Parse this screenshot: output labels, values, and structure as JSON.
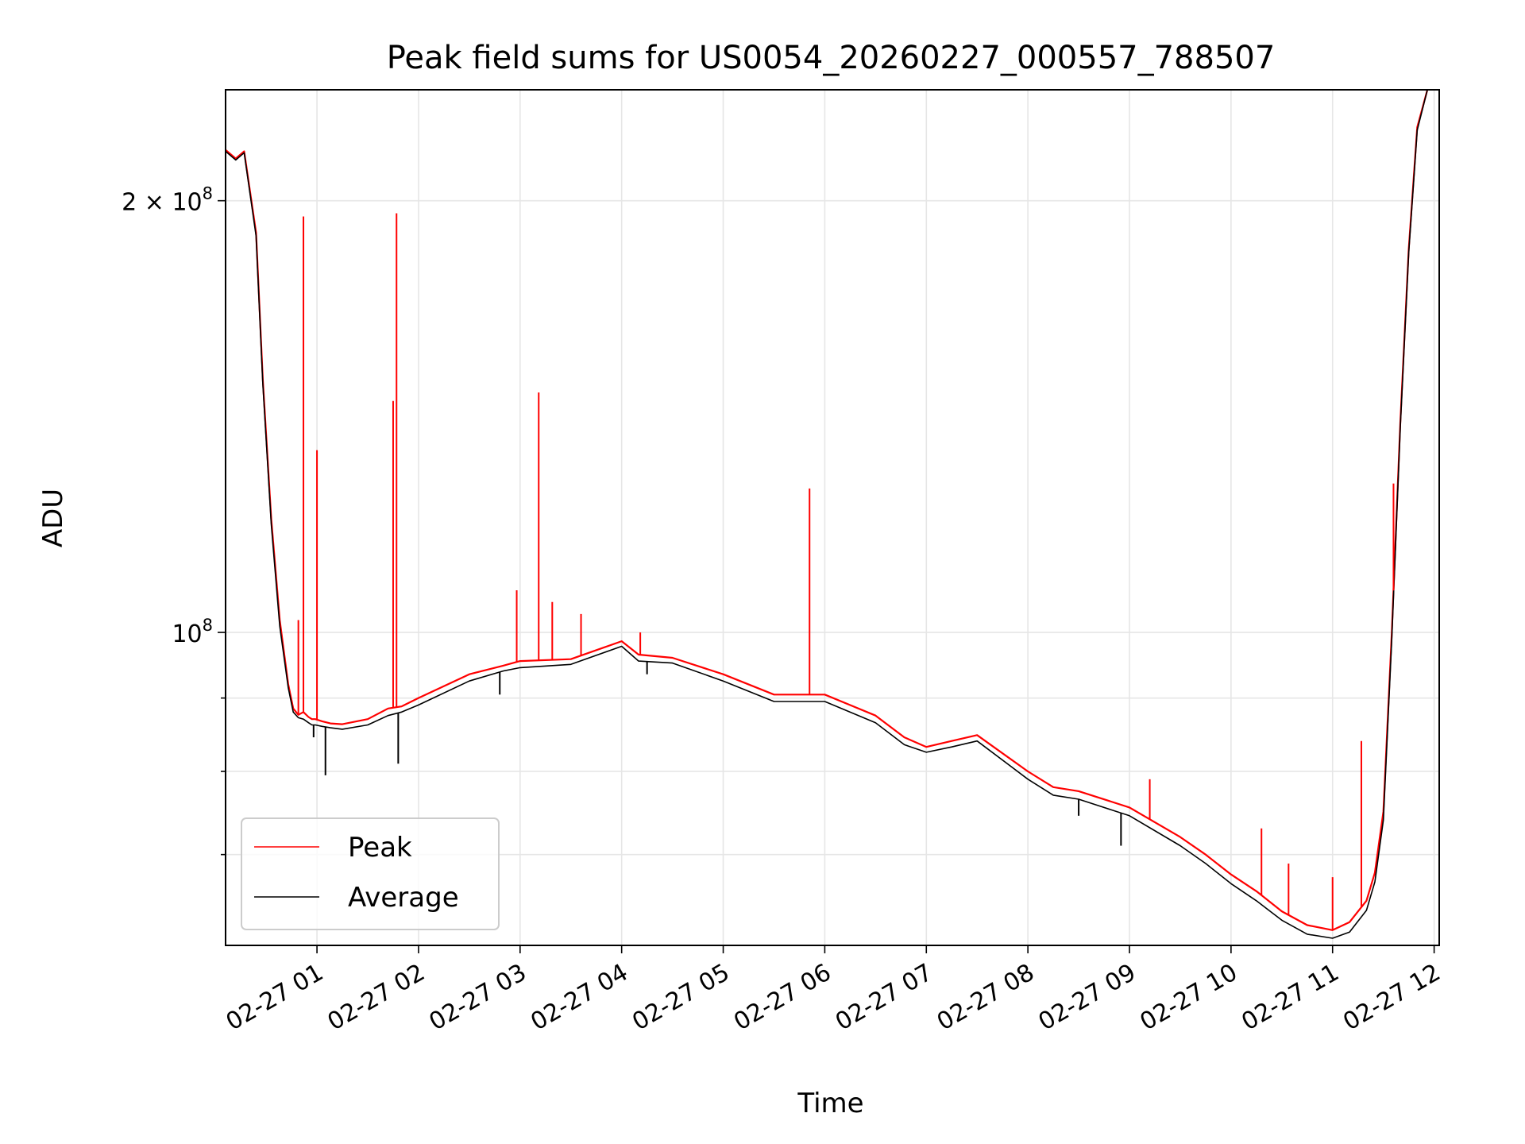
{
  "chart_data": {
    "type": "line",
    "title": "Peak field sums for US0054_20260227_000557_788507",
    "xlabel": "Time",
    "ylabel": "ADU",
    "y_scale": "log",
    "xlim": [
      "2026-02-27 00:06",
      "2026-02-27 12:03"
    ],
    "ylim": [
      60500000,
      239000000
    ],
    "grid": true,
    "legend": "lower-left",
    "x_ticks": [
      {
        "value": "2026-02-27 01:00",
        "label": "02-27 01"
      },
      {
        "value": "2026-02-27 02:00",
        "label": "02-27 02"
      },
      {
        "value": "2026-02-27 03:00",
        "label": "02-27 03"
      },
      {
        "value": "2026-02-27 04:00",
        "label": "02-27 04"
      },
      {
        "value": "2026-02-27 05:00",
        "label": "02-27 05"
      },
      {
        "value": "2026-02-27 06:00",
        "label": "02-27 06"
      },
      {
        "value": "2026-02-27 07:00",
        "label": "02-27 07"
      },
      {
        "value": "2026-02-27 08:00",
        "label": "02-27 08"
      },
      {
        "value": "2026-02-27 09:00",
        "label": "02-27 09"
      },
      {
        "value": "2026-02-27 10:00",
        "label": "02-27 10"
      },
      {
        "value": "2026-02-27 11:00",
        "label": "02-27 11"
      },
      {
        "value": "2026-02-27 12:00",
        "label": "02-27 12"
      }
    ],
    "y_major_ticks": [
      {
        "value": 100000000,
        "base": "10",
        "exp": "8"
      },
      {
        "value": 200000000,
        "coef": "2 × ",
        "base": "10",
        "exp": "8"
      }
    ],
    "y_minor_ticks": [
      70000000,
      80000000,
      90000000
    ],
    "colors": {
      "peak": "#ff0000",
      "average": "#000000"
    },
    "series": [
      {
        "name": "Peak",
        "color": "#ff0000",
        "x": [
          "2026-02-27 00:06",
          "2026-02-27 00:12",
          "2026-02-27 00:17",
          "2026-02-27 00:24",
          "2026-02-27 00:28",
          "2026-02-27 00:33",
          "2026-02-27 00:38",
          "2026-02-27 00:43",
          "2026-02-27 00:46",
          "2026-02-27 00:49",
          "2026-02-27 00:52",
          "2026-02-27 00:55",
          "2026-02-27 00:57",
          "2026-02-27 00:59",
          "2026-02-27 01:03",
          "2026-02-27 01:08",
          "2026-02-27 01:15",
          "2026-02-27 01:30",
          "2026-02-27 01:42",
          "2026-02-27 01:50",
          "2026-02-27 02:00",
          "2026-02-27 02:30",
          "2026-02-27 02:50",
          "2026-02-27 03:00",
          "2026-02-27 03:30",
          "2026-02-27 04:00",
          "2026-02-27 04:10",
          "2026-02-27 04:30",
          "2026-02-27 05:00",
          "2026-02-27 05:30",
          "2026-02-27 06:00",
          "2026-02-27 06:30",
          "2026-02-27 06:47",
          "2026-02-27 07:00",
          "2026-02-27 07:15",
          "2026-02-27 07:30",
          "2026-02-27 08:00",
          "2026-02-27 08:15",
          "2026-02-27 08:30",
          "2026-02-27 09:00",
          "2026-02-27 09:30",
          "2026-02-27 09:45",
          "2026-02-27 10:00",
          "2026-02-27 10:15",
          "2026-02-27 10:30",
          "2026-02-27 10:45",
          "2026-02-27 11:00",
          "2026-02-27 11:10",
          "2026-02-27 11:20",
          "2026-02-27 11:25",
          "2026-02-27 11:30",
          "2026-02-27 11:35",
          "2026-02-27 11:40",
          "2026-02-27 11:45",
          "2026-02-27 11:50",
          "2026-02-27 11:56"
        ],
        "y": [
          217000000,
          214000000,
          216500000,
          190000000,
          150000000,
          120000000,
          102000000,
          92000000,
          88500000,
          87600000,
          88000000,
          87300000,
          87000000,
          87000000,
          86700000,
          86400000,
          86300000,
          87000000,
          88500000,
          88800000,
          90000000,
          93500000,
          94800000,
          95500000,
          95800000,
          98600000,
          96500000,
          96000000,
          93500000,
          90500000,
          90500000,
          87500000,
          84500000,
          83200000,
          84000000,
          84800000,
          80000000,
          78000000,
          77500000,
          75500000,
          72000000,
          70000000,
          67800000,
          66000000,
          63900000,
          62500000,
          62000000,
          62800000,
          65000000,
          68000000,
          75000000,
          100000000,
          140000000,
          185000000,
          225000000,
          239000000
        ]
      },
      {
        "name": "Average",
        "color": "#000000",
        "x": [
          "2026-02-27 00:06",
          "2026-02-27 00:12",
          "2026-02-27 00:17",
          "2026-02-27 00:24",
          "2026-02-27 00:28",
          "2026-02-27 00:33",
          "2026-02-27 00:38",
          "2026-02-27 00:43",
          "2026-02-27 00:46",
          "2026-02-27 00:49",
          "2026-02-27 00:52",
          "2026-02-27 00:55",
          "2026-02-27 00:57",
          "2026-02-27 00:59",
          "2026-02-27 01:03",
          "2026-02-27 01:08",
          "2026-02-27 01:15",
          "2026-02-27 01:30",
          "2026-02-27 01:42",
          "2026-02-27 01:50",
          "2026-02-27 02:00",
          "2026-02-27 02:30",
          "2026-02-27 02:50",
          "2026-02-27 03:00",
          "2026-02-27 03:30",
          "2026-02-27 04:00",
          "2026-02-27 04:10",
          "2026-02-27 04:30",
          "2026-02-27 05:00",
          "2026-02-27 05:30",
          "2026-02-27 06:00",
          "2026-02-27 06:30",
          "2026-02-27 06:47",
          "2026-02-27 07:00",
          "2026-02-27 07:15",
          "2026-02-27 07:30",
          "2026-02-27 08:00",
          "2026-02-27 08:15",
          "2026-02-27 08:30",
          "2026-02-27 09:00",
          "2026-02-27 09:30",
          "2026-02-27 09:45",
          "2026-02-27 10:00",
          "2026-02-27 10:15",
          "2026-02-27 10:30",
          "2026-02-27 10:45",
          "2026-02-27 11:00",
          "2026-02-27 11:10",
          "2026-02-27 11:20",
          "2026-02-27 11:25",
          "2026-02-27 11:30",
          "2026-02-27 11:35",
          "2026-02-27 11:40",
          "2026-02-27 11:45",
          "2026-02-27 11:50",
          "2026-02-27 11:56"
        ],
        "y": [
          216500000,
          213500000,
          216000000,
          189000000,
          149000000,
          119000000,
          101000000,
          91500000,
          88000000,
          87200000,
          87000000,
          86500000,
          86200000,
          86200000,
          86000000,
          85800000,
          85600000,
          86200000,
          87500000,
          88000000,
          89000000,
          92500000,
          94000000,
          94500000,
          95000000,
          97800000,
          95500000,
          95200000,
          92500000,
          89500000,
          89500000,
          86500000,
          83500000,
          82500000,
          83200000,
          84000000,
          79000000,
          77000000,
          76500000,
          74500000,
          71000000,
          69000000,
          66800000,
          65000000,
          63000000,
          61600000,
          61200000,
          61800000,
          64000000,
          67000000,
          74000000,
          99000000,
          139000000,
          184000000,
          224000000,
          239000000
        ]
      }
    ],
    "spikes": {
      "series": "Peak",
      "x": [
        "2026-02-27 00:49",
        "2026-02-27 00:52",
        "2026-02-27 01:00",
        "2026-02-27 01:45",
        "2026-02-27 01:47",
        "2026-02-27 02:58",
        "2026-02-27 03:11",
        "2026-02-27 03:19",
        "2026-02-27 03:36",
        "2026-02-27 04:11",
        "2026-02-27 05:51",
        "2026-02-27 09:12",
        "2026-02-27 10:18",
        "2026-02-27 10:34",
        "2026-02-27 11:00",
        "2026-02-27 11:17",
        "2026-02-27 11:36"
      ],
      "y": [
        102000000,
        195000000,
        134000000,
        145000000,
        196000000,
        107000000,
        147000000,
        105000000,
        103000000,
        100000000,
        126000000,
        79000000,
        73000000,
        69000000,
        67500000,
        84000000,
        127000000
      ]
    },
    "dips": {
      "series": "Average",
      "x": [
        "2026-02-27 00:58",
        "2026-02-27 01:05",
        "2026-02-27 01:48",
        "2026-02-27 02:48",
        "2026-02-27 04:15",
        "2026-02-27 08:30",
        "2026-02-27 08:55"
      ],
      "y": [
        84500000,
        79500000,
        81000000,
        90500000,
        93500000,
        74500000,
        71000000
      ]
    }
  }
}
